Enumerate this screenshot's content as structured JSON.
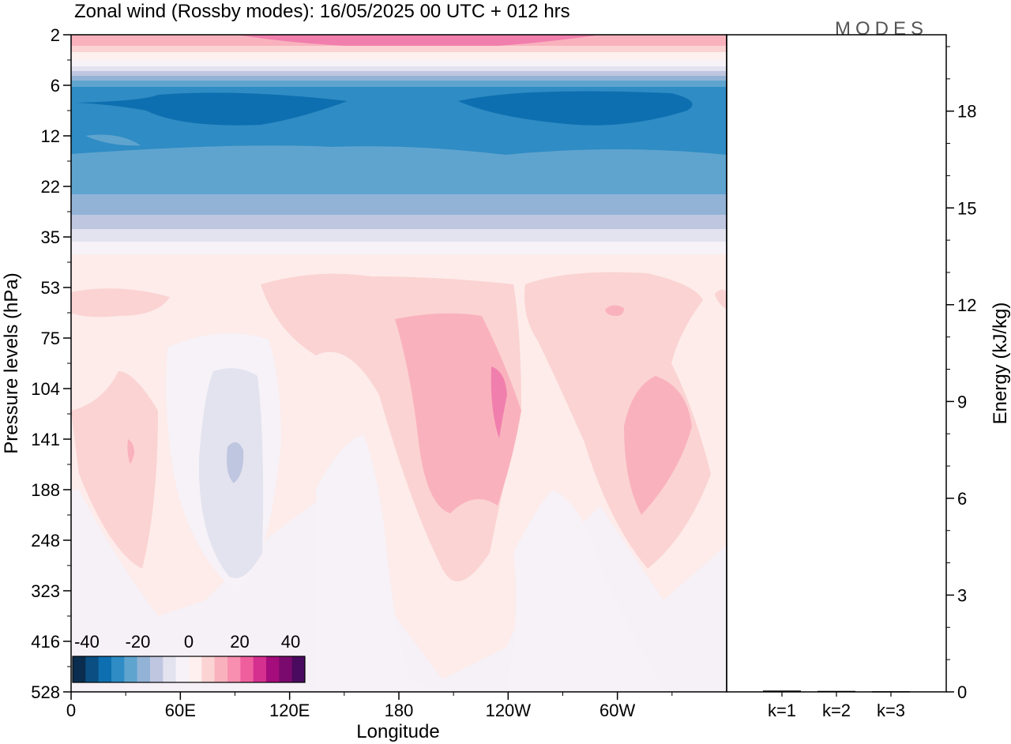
{
  "title": "Zonal wind (Rossby modes):  16/05/2025  00 UTC  + 012 hrs",
  "logo": "MODES",
  "colorbar": {
    "ticks": [
      "-40",
      "-20",
      "0",
      "20",
      "40"
    ],
    "colors": [
      "#0a2d4f",
      "#0b4f82",
      "#0e6fb0",
      "#2f8cc4",
      "#5fa4cf",
      "#93b3d6",
      "#bfc6e0",
      "#e3e3ef",
      "#f6f2f8",
      "#fdf0ee",
      "#fbd3d3",
      "#f9b2bd",
      "#f88fb0",
      "#ef5f9e",
      "#d5308f",
      "#a50c7c",
      "#7a0a6e",
      "#4a0a5e"
    ]
  },
  "chart_data": [
    {
      "type": "heatmap",
      "name": "Zonal wind",
      "xlabel": "Longitude",
      "ylabel": "Pressure levels (hPa)",
      "x_ticks": [
        "0",
        "60E",
        "120E",
        "180",
        "120W",
        "60W"
      ],
      "x_tick_lon": [
        0,
        60,
        120,
        180,
        240,
        300
      ],
      "xlim": [
        0,
        360
      ],
      "y_ticks": [
        "2",
        "6",
        "12",
        "22",
        "35",
        "53",
        "75",
        "104",
        "141",
        "188",
        "248",
        "323",
        "416",
        "528"
      ],
      "y_scale": "model levels (ordinal)",
      "bands": [
        {
          "level_from": "2",
          "level_to": "3",
          "value": 15
        },
        {
          "level_from": "3",
          "level_to": "5",
          "value": 2
        },
        {
          "level_from": "5",
          "level_to": "6",
          "value": -15
        },
        {
          "level_from": "6",
          "level_to": "22",
          "value": -28
        },
        {
          "level_from": "22",
          "level_to": "35",
          "value": -18
        },
        {
          "level_from": "35",
          "level_to": "528",
          "value": 3
        }
      ],
      "regions": [
        {
          "center_lon": 65,
          "level_from": "8",
          "level_to": "10",
          "value": -35
        },
        {
          "center_lon": 285,
          "level_from": "8",
          "level_to": "10",
          "value": -35
        },
        {
          "center_lon": 190,
          "level_from": "2",
          "level_to": "3",
          "value": 25
        },
        {
          "center_lon": 30,
          "level_from": "104",
          "level_to": "248",
          "value": 8
        },
        {
          "center_lon": 95,
          "level_from": "104",
          "level_to": "323",
          "value": -3
        },
        {
          "center_lon": 205,
          "level_from": "75",
          "level_to": "248",
          "value": 12
        },
        {
          "center_lon": 235,
          "level_from": "104",
          "level_to": "141",
          "value": 18
        },
        {
          "center_lon": 325,
          "level_from": "104",
          "level_to": "248",
          "value": 10
        },
        {
          "center_lon": 160,
          "level_from": "141",
          "level_to": "528",
          "value": -2
        }
      ]
    },
    {
      "type": "bar",
      "ylabel": "Energy (kJ/kg)",
      "categories": [
        "k=1",
        "k=2",
        "k=3"
      ],
      "values": [
        0.04,
        0.03,
        0.02
      ],
      "ylim": [
        0,
        20
      ],
      "y_ticks": [
        0,
        3,
        6,
        9,
        12,
        15,
        18
      ]
    }
  ]
}
